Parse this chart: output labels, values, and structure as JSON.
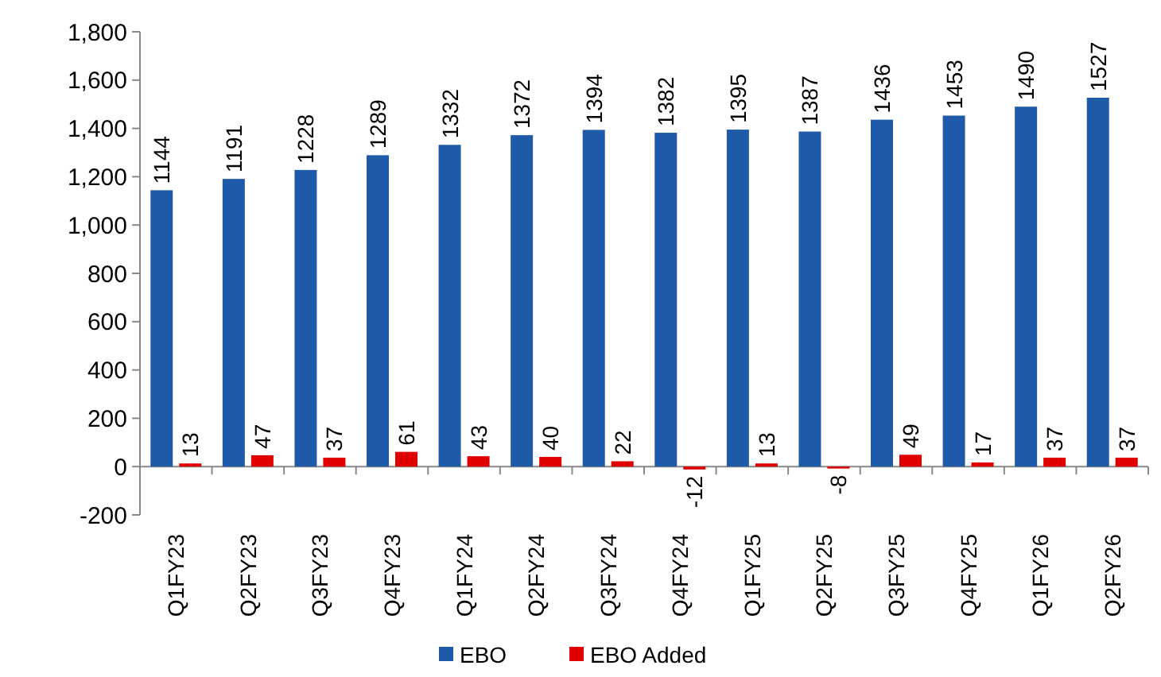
{
  "chart_data": {
    "type": "bar",
    "categories": [
      "Q1FY23",
      "Q2FY23",
      "Q3FY23",
      "Q4FY23",
      "Q1FY24",
      "Q2FY24",
      "Q3FY24",
      "Q4FY24",
      "Q1FY25",
      "Q2FY25",
      "Q3FY25",
      "Q4FY25",
      "Q1FY26",
      "Q2FY26"
    ],
    "series": [
      {
        "name": "EBO",
        "color": "#1f5aa8",
        "values": [
          1144,
          1191,
          1228,
          1289,
          1332,
          1372,
          1394,
          1382,
          1395,
          1387,
          1436,
          1453,
          1490,
          1527
        ]
      },
      {
        "name": "EBO Added",
        "color": "#e00000",
        "values": [
          13,
          47,
          37,
          61,
          43,
          40,
          22,
          -12,
          13,
          -8,
          49,
          17,
          37,
          37
        ]
      }
    ],
    "ylim": [
      -200,
      1800
    ],
    "yticks": [
      -200,
      0,
      200,
      400,
      600,
      800,
      {
        "value": 1000,
        "label": "1,000"
      },
      {
        "value": 1200,
        "label": "1,200"
      },
      {
        "value": 1400,
        "label": "1,400"
      },
      {
        "value": 1600,
        "label": "1,600"
      },
      {
        "value": 1800,
        "label": "1,800"
      }
    ],
    "data_labels": true,
    "legend": "bottom"
  }
}
